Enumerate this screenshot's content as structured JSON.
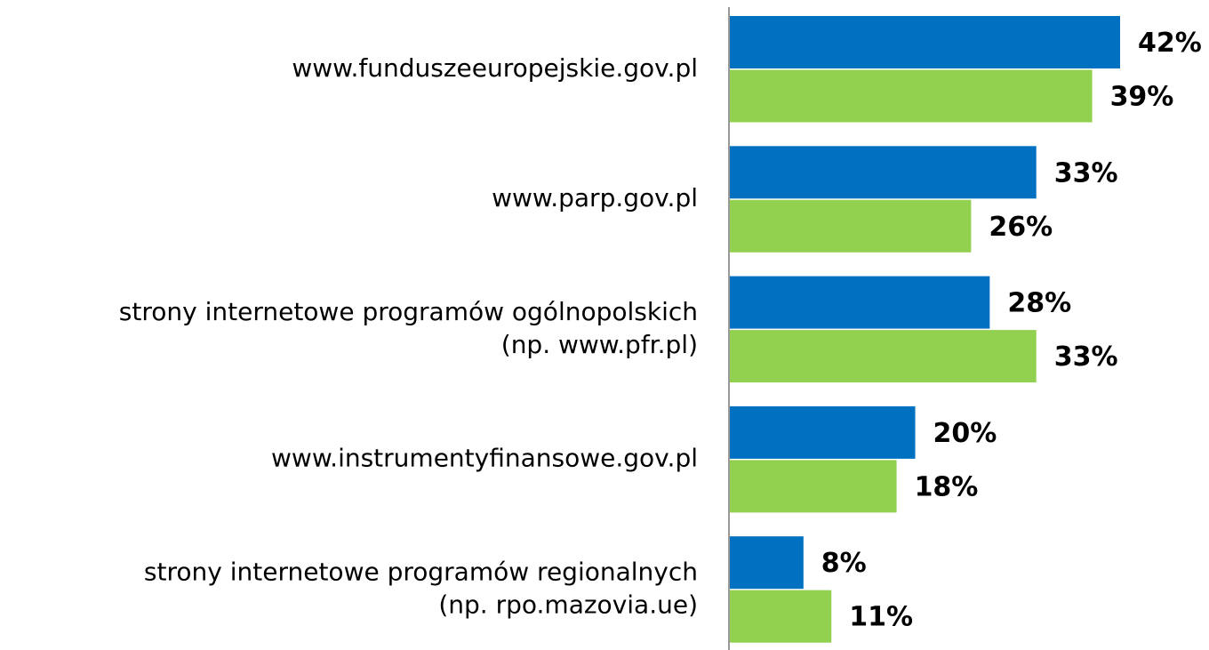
{
  "chart_data": {
    "type": "hbar",
    "categories": [
      [
        "www.funduszeeuropejskie.gov.pl"
      ],
      [
        "www.parp.gov.pl"
      ],
      [
        "strony internetowe programów ogólnopolskich",
        "(np. www.pfr.pl)"
      ],
      [
        "www.instrumentyfinansowe.gov.pl"
      ],
      [
        "strony internetowe programów regionalnych",
        "(np. rpo.mazovia.ue)"
      ]
    ],
    "series": [
      {
        "color": "#0070c0",
        "values": [
          42,
          33,
          28,
          20,
          8
        ],
        "value_labels": [
          "42%",
          "33%",
          "28%",
          "20%",
          "8%"
        ]
      },
      {
        "color": "#92d050",
        "values": [
          39,
          26,
          33,
          18,
          11
        ],
        "value_labels": [
          "39%",
          "26%",
          "33%",
          "18%",
          "11%"
        ]
      }
    ],
    "xlim": [
      0,
      42
    ]
  }
}
